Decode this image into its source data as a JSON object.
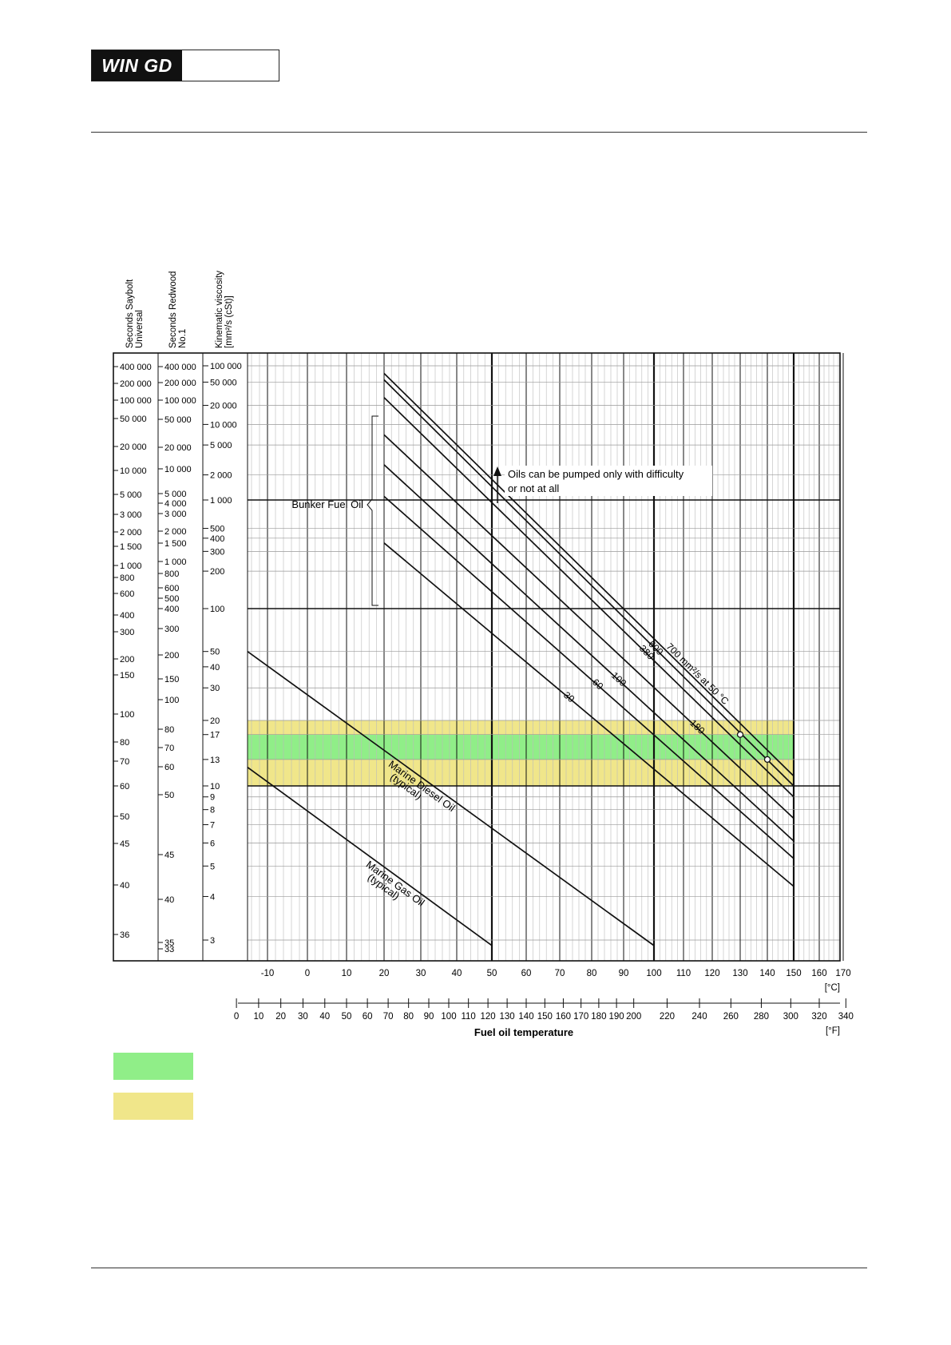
{
  "header": {
    "logo_text": "WIN GD"
  },
  "chart_data": {
    "type": "line",
    "xlabel": "Fuel oil temperature",
    "x_unit_c": "[°C]",
    "x_unit_f": "[°F]",
    "xlim_c": [
      -15,
      170
    ],
    "x_ticks_c": [
      -10,
      0,
      10,
      20,
      30,
      40,
      50,
      60,
      70,
      80,
      90,
      100,
      110,
      120,
      130,
      140,
      150,
      160,
      170
    ],
    "x_ticks_f": [
      0,
      10,
      20,
      30,
      40,
      50,
      60,
      70,
      80,
      90,
      100,
      110,
      120,
      130,
      140,
      150,
      160,
      170,
      180,
      190,
      200,
      220,
      240,
      260,
      280,
      300,
      320,
      340
    ],
    "y_scale": "log-log (ASTM viscosity-temperature chart)",
    "axes_labels": {
      "saybolt": [
        "Seconds Saybolt",
        "Universal"
      ],
      "redwood": [
        "Seconds Redwood",
        "No.1"
      ],
      "kinematic": [
        "Kinematic viscosity",
        "[mm²/s (cSt)]"
      ]
    },
    "saybolt_ticks": [
      "400 000",
      "200 000",
      "100 000",
      "50 000",
      "20 000",
      "10 000",
      "5 000",
      "3 000",
      "2 000",
      "1 500",
      "1 000",
      "800",
      "600",
      "400",
      "300",
      "200",
      "150",
      "100",
      "80",
      "70",
      "60",
      "50",
      "45",
      "40",
      "36"
    ],
    "redwood_ticks": [
      "400 000",
      "200 000",
      "100 000",
      "50 000",
      "20 000",
      "10 000",
      "5 000",
      "4 000",
      "3 000",
      "2 000",
      "1 500",
      "1 000",
      "800",
      "600",
      "500",
      "400",
      "300",
      "200",
      "150",
      "100",
      "80",
      "70",
      "60",
      "50",
      "45",
      "40",
      "35",
      "33"
    ],
    "kinematic_ticks": [
      "100 000",
      "50 000",
      "20 000",
      "10 000",
      "5 000",
      "2 000",
      "1 000",
      "500",
      "400",
      "300",
      "200",
      "100",
      "50",
      "40",
      "30",
      "20",
      "17",
      "13",
      "10",
      "9",
      "8",
      "7",
      "6",
      "5",
      "4",
      "3"
    ],
    "bands": [
      {
        "name": "yellow",
        "visc_from": 10,
        "visc_to": 20,
        "color": "#f0e68a"
      },
      {
        "name": "green",
        "visc_from": 13,
        "visc_to": 17,
        "color": "#90ee88"
      }
    ],
    "series": [
      {
        "name": "700 mm²/s at 50 °C",
        "points": [
          [
            20,
            72000
          ],
          [
            150,
            11
          ]
        ]
      },
      {
        "name": "600",
        "points": [
          [
            20,
            55000
          ],
          [
            150,
            10
          ]
        ]
      },
      {
        "name": "380",
        "points": [
          [
            20,
            27000
          ],
          [
            150,
            9
          ]
        ]
      },
      {
        "name": "180",
        "points": [
          [
            20,
            7000
          ],
          [
            150,
            7.4
          ]
        ]
      },
      {
        "name": "100",
        "points": [
          [
            20,
            2700
          ],
          [
            150,
            6.1
          ]
        ]
      },
      {
        "name": "60",
        "points": [
          [
            20,
            1100
          ],
          [
            150,
            5.3
          ]
        ]
      },
      {
        "name": "30",
        "points": [
          [
            20,
            360
          ],
          [
            150,
            4.3
          ]
        ]
      },
      {
        "name": "Marine Diesel Oil (typical)",
        "points": [
          [
            -15,
            50
          ],
          [
            100,
            2.9
          ]
        ]
      },
      {
        "name": "Marine Gas Oil (typical)",
        "points": [
          [
            -15,
            12
          ],
          [
            50,
            2.9
          ]
        ]
      }
    ],
    "markers": [
      {
        "x": 130,
        "y": 17
      },
      {
        "x": 140,
        "y": 13
      }
    ],
    "annotations": {
      "pump_note_line1": "Oils can be pumped only with difficulty",
      "pump_note_line2": "or not at all",
      "bunker": "Bunker Fuel Oil",
      "mdo_line1": "Marine Diesel Oil",
      "mdo_line2": "(typical)",
      "mgo_line1": "Marine Gas Oil",
      "mgo_line2": "(typical)"
    }
  },
  "legend": [
    {
      "color": "#90ee88"
    },
    {
      "color": "#f0e68a"
    }
  ]
}
